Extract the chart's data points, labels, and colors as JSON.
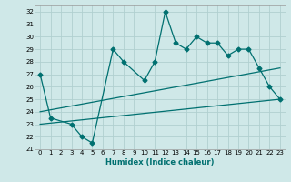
{
  "title": "",
  "xlabel": "Humidex (Indice chaleur)",
  "xlim": [
    -0.5,
    23.5
  ],
  "ylim": [
    21,
    32.5
  ],
  "yticks": [
    21,
    22,
    23,
    24,
    25,
    26,
    27,
    28,
    29,
    30,
    31,
    32
  ],
  "xticks": [
    0,
    1,
    2,
    3,
    4,
    5,
    6,
    7,
    8,
    9,
    10,
    11,
    12,
    13,
    14,
    15,
    16,
    17,
    18,
    19,
    20,
    21,
    22,
    23
  ],
  "bg_color": "#cfe8e8",
  "grid_color": "#b0d0d0",
  "line_color": "#007070",
  "line1_x": [
    0,
    1,
    3,
    4,
    5,
    7,
    8,
    10,
    11,
    12,
    13,
    14,
    15,
    16,
    17,
    18,
    19,
    20,
    21,
    22,
    23
  ],
  "line1_y": [
    27,
    23.5,
    23,
    22,
    21.5,
    29,
    28,
    26.5,
    28,
    32,
    29.5,
    29,
    30,
    29.5,
    29.5,
    28.5,
    29,
    29,
    27.5,
    26,
    25
  ],
  "line2_x": [
    0,
    23
  ],
  "line2_y": [
    23.0,
    25.0
  ],
  "line3_x": [
    0,
    23
  ],
  "line3_y": [
    24.0,
    27.5
  ],
  "marker": "D",
  "markersize": 2.5,
  "linewidth": 0.9,
  "tick_fontsize": 5.0,
  "xlabel_fontsize": 6.0
}
